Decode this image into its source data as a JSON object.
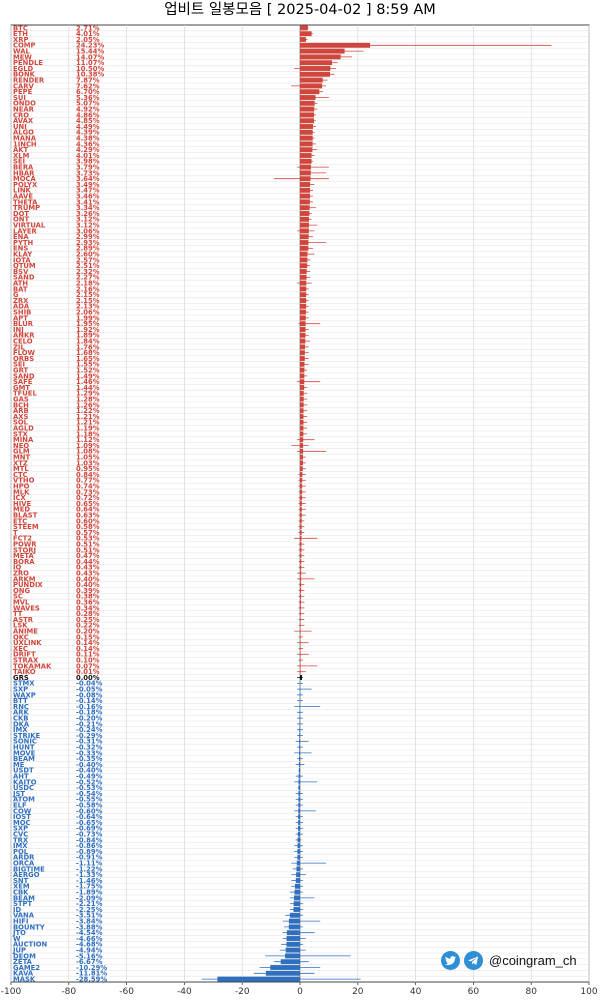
{
  "chart_data": {
    "type": "bar",
    "orientation": "horizontal",
    "title": "업비트 일봉모음 [ 2025-04-02 ] 8:59 AM",
    "xlim": [
      -100,
      100
    ],
    "xticks": [
      -100,
      -80,
      -60,
      -40,
      -20,
      0,
      20,
      40,
      60,
      80,
      100
    ],
    "grid": true,
    "colors": {
      "positive": "#d0463c",
      "negative": "#2f6fc0",
      "zero": "#111111"
    },
    "rows": [
      {
        "label": "BTC",
        "value": 2.71,
        "lo": 2.0,
        "hi": 3.0
      },
      {
        "label": "ETH",
        "value": 4.01,
        "lo": 3.0,
        "hi": 4.5
      },
      {
        "label": "XRP",
        "value": 2.05,
        "lo": 1.5,
        "hi": 2.6
      },
      {
        "label": "COMP",
        "value": 24.23,
        "lo": 20.0,
        "hi": 87.0
      },
      {
        "label": "WAL",
        "value": 15.44,
        "lo": 12.0,
        "hi": 22.0
      },
      {
        "label": "MEW",
        "value": 14.07,
        "lo": 11.0,
        "hi": 18.0
      },
      {
        "label": "PENDLE",
        "value": 11.07,
        "lo": 8.0,
        "hi": 13.0
      },
      {
        "label": "EGLD",
        "value": 10.5,
        "lo": -2.0,
        "hi": 12.5
      },
      {
        "label": "BONK",
        "value": 10.38,
        "lo": 8.0,
        "hi": 12.0
      },
      {
        "label": "RENDER",
        "value": 7.87,
        "lo": 5.5,
        "hi": 9.5
      },
      {
        "label": "CARV",
        "value": 7.62,
        "lo": -3.0,
        "hi": 9.0
      },
      {
        "label": "PEPE",
        "value": 6.7,
        "lo": 5.0,
        "hi": 8.0
      },
      {
        "label": "SUI",
        "value": 5.36,
        "lo": 4.0,
        "hi": 10.0
      },
      {
        "label": "ONDO",
        "value": 5.07,
        "lo": 4.0,
        "hi": 6.0
      },
      {
        "label": "NEAR",
        "value": 4.92,
        "lo": 3.5,
        "hi": 6.0
      },
      {
        "label": "CRO",
        "value": 4.86,
        "lo": 3.0,
        "hi": 5.5
      },
      {
        "label": "AVAX",
        "value": 4.85,
        "lo": 3.5,
        "hi": 5.5
      },
      {
        "label": "UNI",
        "value": 4.49,
        "lo": 3.0,
        "hi": 5.5
      },
      {
        "label": "ALGO",
        "value": 4.39,
        "lo": 3.0,
        "hi": 5.0
      },
      {
        "label": "MANA",
        "value": 4.38,
        "lo": 2.5,
        "hi": 5.0
      },
      {
        "label": "1INCH",
        "value": 4.36,
        "lo": 2.5,
        "hi": 5.5
      },
      {
        "label": "AKT",
        "value": 4.29,
        "lo": 3.0,
        "hi": 6.0
      },
      {
        "label": "XLM",
        "value": 4.01,
        "lo": 3.0,
        "hi": 5.0
      },
      {
        "label": "SEI",
        "value": 3.98,
        "lo": 2.5,
        "hi": 4.5
      },
      {
        "label": "BERA",
        "value": 3.79,
        "lo": -1.0,
        "hi": 10.0
      },
      {
        "label": "HBAR",
        "value": 3.73,
        "lo": 1.5,
        "hi": 9.0
      },
      {
        "label": "MOCA",
        "value": 3.64,
        "lo": -9.0,
        "hi": 10.0
      },
      {
        "label": "POLYX",
        "value": 3.49,
        "lo": 1.0,
        "hi": 5.0
      },
      {
        "label": "LINK",
        "value": 3.47,
        "lo": 2.5,
        "hi": 4.5
      },
      {
        "label": "AAVE",
        "value": 3.46,
        "lo": 2.0,
        "hi": 4.5
      },
      {
        "label": "THETA",
        "value": 3.41,
        "lo": 2.0,
        "hi": 4.5
      },
      {
        "label": "TRUMP",
        "value": 3.34,
        "lo": 2.0,
        "hi": 5.5
      },
      {
        "label": "DOT",
        "value": 3.26,
        "lo": 2.0,
        "hi": 4.0
      },
      {
        "label": "ONT",
        "value": 3.12,
        "lo": 1.5,
        "hi": 4.0
      },
      {
        "label": "VIRTUAL",
        "value": 3.12,
        "lo": 0.5,
        "hi": 6.0
      },
      {
        "label": "LAYER",
        "value": 3.06,
        "lo": -1.0,
        "hi": 5.0
      },
      {
        "label": "ENA",
        "value": 2.99,
        "lo": 1.5,
        "hi": 4.5
      },
      {
        "label": "PYTH",
        "value": 2.93,
        "lo": 1.0,
        "hi": 9.0
      },
      {
        "label": "ENS",
        "value": 2.89,
        "lo": 1.5,
        "hi": 4.5
      },
      {
        "label": "KLAY",
        "value": 2.6,
        "lo": 1.0,
        "hi": 5.0
      },
      {
        "label": "IOTA",
        "value": 2.57,
        "lo": 1.5,
        "hi": 3.5
      },
      {
        "label": "QTUM",
        "value": 2.51,
        "lo": 1.5,
        "hi": 3.5
      },
      {
        "label": "BSV",
        "value": 2.32,
        "lo": 1.0,
        "hi": 3.5
      },
      {
        "label": "SAND",
        "value": 2.27,
        "lo": 1.0,
        "hi": 3.5
      },
      {
        "label": "ATH",
        "value": 2.18,
        "lo": -1.0,
        "hi": 4.0
      },
      {
        "label": "BAT",
        "value": 2.16,
        "lo": 1.0,
        "hi": 3.0
      },
      {
        "label": "G",
        "value": 2.15,
        "lo": 1.0,
        "hi": 3.0
      },
      {
        "label": "ZRX",
        "value": 2.15,
        "lo": 1.0,
        "hi": 3.0
      },
      {
        "label": "ADA",
        "value": 2.13,
        "lo": 1.0,
        "hi": 3.0
      },
      {
        "label": "SHIB",
        "value": 2.06,
        "lo": 1.0,
        "hi": 3.0
      },
      {
        "label": "APT",
        "value": 1.99,
        "lo": 0.5,
        "hi": 3.0
      },
      {
        "label": "BLUR",
        "value": 1.95,
        "lo": -0.5,
        "hi": 7.0
      },
      {
        "label": "INJ",
        "value": 1.92,
        "lo": 0.5,
        "hi": 3.0
      },
      {
        "label": "ANKR",
        "value": 1.89,
        "lo": 0.5,
        "hi": 3.0
      },
      {
        "label": "CELO",
        "value": 1.84,
        "lo": 0.5,
        "hi": 3.5
      },
      {
        "label": "ZIL",
        "value": 1.76,
        "lo": 0.5,
        "hi": 3.0
      },
      {
        "label": "FLOW",
        "value": 1.68,
        "lo": 0.5,
        "hi": 3.0
      },
      {
        "label": "ORBS",
        "value": 1.65,
        "lo": 0.5,
        "hi": 3.0
      },
      {
        "label": "SEI",
        "value": 1.55,
        "lo": 0.5,
        "hi": 3.0
      },
      {
        "label": "GRT",
        "value": 1.52,
        "lo": 0.5,
        "hi": 2.5
      },
      {
        "label": "SAND",
        "value": 1.49,
        "lo": 0.5,
        "hi": 2.5
      },
      {
        "label": "SAFE",
        "value": 1.46,
        "lo": -1.0,
        "hi": 7.0
      },
      {
        "label": "GMT",
        "value": 1.44,
        "lo": 0.5,
        "hi": 2.5
      },
      {
        "label": "TFUEL",
        "value": 1.29,
        "lo": 0.5,
        "hi": 2.5
      },
      {
        "label": "GAS",
        "value": 1.28,
        "lo": 0.5,
        "hi": 2.5
      },
      {
        "label": "BCH",
        "value": 1.26,
        "lo": 0.5,
        "hi": 2.5
      },
      {
        "label": "ARB",
        "value": 1.22,
        "lo": 0.0,
        "hi": 2.5
      },
      {
        "label": "AXS",
        "value": 1.21,
        "lo": 0.0,
        "hi": 2.5
      },
      {
        "label": "SOL",
        "value": 1.21,
        "lo": 0.0,
        "hi": 2.5
      },
      {
        "label": "AGLD",
        "value": 1.19,
        "lo": 0.0,
        "hi": 2.5
      },
      {
        "label": "STX",
        "value": 1.18,
        "lo": 0.0,
        "hi": 2.5
      },
      {
        "label": "MINA",
        "value": 1.12,
        "lo": -1.0,
        "hi": 5.0
      },
      {
        "label": "NEO",
        "value": 1.09,
        "lo": -3.0,
        "hi": 3.0
      },
      {
        "label": "GLM",
        "value": 1.08,
        "lo": -1.0,
        "hi": 9.0
      },
      {
        "label": "MNT",
        "value": 1.05,
        "lo": 0.0,
        "hi": 2.0
      },
      {
        "label": "XTZ",
        "value": 1.03,
        "lo": 0.0,
        "hi": 2.0
      },
      {
        "label": "MTL",
        "value": 0.95,
        "lo": 0.0,
        "hi": 2.0
      },
      {
        "label": "CTC",
        "value": 0.84,
        "lo": -0.5,
        "hi": 2.0
      },
      {
        "label": "VTHO",
        "value": 0.77,
        "lo": -0.5,
        "hi": 2.0
      },
      {
        "label": "HPO",
        "value": 0.74,
        "lo": -0.5,
        "hi": 2.0
      },
      {
        "label": "MLK",
        "value": 0.73,
        "lo": -0.5,
        "hi": 2.0
      },
      {
        "label": "ICX",
        "value": 0.72,
        "lo": -0.5,
        "hi": 2.0
      },
      {
        "label": "HIVE",
        "value": 0.65,
        "lo": -0.5,
        "hi": 2.0
      },
      {
        "label": "MED",
        "value": 0.64,
        "lo": -0.5,
        "hi": 2.0
      },
      {
        "label": "BLAST",
        "value": 0.63,
        "lo": -0.5,
        "hi": 2.0
      },
      {
        "label": "ETC",
        "value": 0.6,
        "lo": -0.5,
        "hi": 1.5
      },
      {
        "label": "STEEM",
        "value": 0.58,
        "lo": -0.5,
        "hi": 1.5
      },
      {
        "label": "T",
        "value": 0.57,
        "lo": -0.5,
        "hi": 1.5
      },
      {
        "label": "FCT2",
        "value": 0.53,
        "lo": -2.0,
        "hi": 6.0
      },
      {
        "label": "POWR",
        "value": 0.51,
        "lo": -0.5,
        "hi": 1.5
      },
      {
        "label": "STORJ",
        "value": 0.51,
        "lo": -0.5,
        "hi": 1.5
      },
      {
        "label": "META",
        "value": 0.47,
        "lo": -0.5,
        "hi": 1.5
      },
      {
        "label": "BORA",
        "value": 0.44,
        "lo": -0.5,
        "hi": 1.5
      },
      {
        "label": "IQ",
        "value": 0.43,
        "lo": -0.5,
        "hi": 1.5
      },
      {
        "label": "ZRO",
        "value": 0.43,
        "lo": -1.0,
        "hi": 2.0
      },
      {
        "label": "ARKM",
        "value": 0.4,
        "lo": -1.0,
        "hi": 5.0
      },
      {
        "label": "PUNDIX",
        "value": 0.4,
        "lo": -0.5,
        "hi": 1.5
      },
      {
        "label": "ONG",
        "value": 0.39,
        "lo": -0.5,
        "hi": 1.5
      },
      {
        "label": "SC",
        "value": 0.38,
        "lo": -0.5,
        "hi": 1.5
      },
      {
        "label": "MVL",
        "value": 0.36,
        "lo": -0.5,
        "hi": 1.5
      },
      {
        "label": "WAVES",
        "value": 0.34,
        "lo": -0.5,
        "hi": 1.5
      },
      {
        "label": "TT",
        "value": 0.28,
        "lo": -0.5,
        "hi": 1.5
      },
      {
        "label": "ASTR",
        "value": 0.25,
        "lo": -0.5,
        "hi": 1.5
      },
      {
        "label": "LSK",
        "value": 0.22,
        "lo": -0.5,
        "hi": 1.5
      },
      {
        "label": "ANIME",
        "value": 0.2,
        "lo": -2.0,
        "hi": 4.0
      },
      {
        "label": "QKC",
        "value": 0.15,
        "lo": -0.5,
        "hi": 1.0
      },
      {
        "label": "UXLINK",
        "value": 0.14,
        "lo": -1.0,
        "hi": 3.0
      },
      {
        "label": "XEC",
        "value": 0.14,
        "lo": -0.5,
        "hi": 1.0
      },
      {
        "label": "DRIFT",
        "value": 0.11,
        "lo": -1.0,
        "hi": 3.0
      },
      {
        "label": "STRAX",
        "value": 0.1,
        "lo": -0.5,
        "hi": 1.0
      },
      {
        "label": "TOKAMAK",
        "value": 0.07,
        "lo": -1.0,
        "hi": 6.0
      },
      {
        "label": "TAIKO",
        "value": 0.01,
        "lo": -1.0,
        "hi": 2.0
      },
      {
        "label": "GRS",
        "value": 0.0,
        "lo": -1.0,
        "hi": 1.0
      },
      {
        "label": "STMX",
        "value": -0.04,
        "lo": -1.0,
        "hi": 1.0
      },
      {
        "label": "SXP",
        "value": -0.05,
        "lo": -1.0,
        "hi": 4.0
      },
      {
        "label": "WAXP",
        "value": -0.08,
        "lo": -1.0,
        "hi": 1.0
      },
      {
        "label": "BTT",
        "value": -0.14,
        "lo": -1.0,
        "hi": 1.0
      },
      {
        "label": "RNC",
        "value": -0.16,
        "lo": -2.0,
        "hi": 7.0
      },
      {
        "label": "ARK",
        "value": -0.18,
        "lo": -1.0,
        "hi": 1.0
      },
      {
        "label": "CKB",
        "value": -0.2,
        "lo": -1.0,
        "hi": 1.0
      },
      {
        "label": "DKA",
        "value": -0.21,
        "lo": -1.0,
        "hi": 1.0
      },
      {
        "label": "IMX",
        "value": -0.24,
        "lo": -1.0,
        "hi": 1.0
      },
      {
        "label": "STRIKE",
        "value": -0.29,
        "lo": -1.0,
        "hi": 1.0
      },
      {
        "label": "SONIC",
        "value": -0.31,
        "lo": -1.5,
        "hi": 3.0
      },
      {
        "label": "HUNT",
        "value": -0.32,
        "lo": -1.0,
        "hi": 1.0
      },
      {
        "label": "MOVE",
        "value": -0.33,
        "lo": -2.0,
        "hi": 4.0
      },
      {
        "label": "BEAM",
        "value": -0.35,
        "lo": -1.0,
        "hi": 1.0
      },
      {
        "label": "ME",
        "value": -0.4,
        "lo": -1.5,
        "hi": 1.5
      },
      {
        "label": "USDT",
        "value": -0.4,
        "lo": -0.5,
        "hi": 0.0
      },
      {
        "label": "AHT",
        "value": -0.49,
        "lo": -1.5,
        "hi": 1.0
      },
      {
        "label": "KAITO",
        "value": -0.52,
        "lo": -2.0,
        "hi": 6.0
      },
      {
        "label": "USDC",
        "value": -0.53,
        "lo": -0.8,
        "hi": 0.0
      },
      {
        "label": "JST",
        "value": -0.54,
        "lo": -1.5,
        "hi": 1.0
      },
      {
        "label": "ATOM",
        "value": -0.55,
        "lo": -1.5,
        "hi": 1.0
      },
      {
        "label": "ELF",
        "value": -0.58,
        "lo": -1.5,
        "hi": 1.0
      },
      {
        "label": "COW",
        "value": -0.6,
        "lo": -2.0,
        "hi": 5.5
      },
      {
        "label": "IOST",
        "value": -0.64,
        "lo": -1.5,
        "hi": 1.0
      },
      {
        "label": "MOC",
        "value": -0.65,
        "lo": -1.5,
        "hi": 1.0
      },
      {
        "label": "SXP",
        "value": -0.69,
        "lo": -1.5,
        "hi": 1.0
      },
      {
        "label": "CVC",
        "value": -0.73,
        "lo": -1.5,
        "hi": 1.0
      },
      {
        "label": "TRX",
        "value": -0.84,
        "lo": -1.5,
        "hi": 0.5
      },
      {
        "label": "IMX",
        "value": -0.86,
        "lo": -2.0,
        "hi": 1.0
      },
      {
        "label": "POL",
        "value": -0.89,
        "lo": -2.0,
        "hi": 1.0
      },
      {
        "label": "ARDR",
        "value": -0.91,
        "lo": -2.0,
        "hi": 1.0
      },
      {
        "label": "ORCA",
        "value": -1.11,
        "lo": -3.0,
        "hi": 9.0
      },
      {
        "label": "BIGTIME",
        "value": -1.22,
        "lo": -2.5,
        "hi": 1.0
      },
      {
        "label": "AERGO",
        "value": -1.33,
        "lo": -3.0,
        "hi": 2.0
      },
      {
        "label": "SNT",
        "value": -1.46,
        "lo": -3.0,
        "hi": 1.0
      },
      {
        "label": "XEM",
        "value": -1.75,
        "lo": -3.0,
        "hi": 1.0
      },
      {
        "label": "CBK",
        "value": -1.89,
        "lo": -3.5,
        "hi": 1.0
      },
      {
        "label": "BEAM",
        "value": -2.09,
        "lo": -3.5,
        "hi": 5.0
      },
      {
        "label": "STPT",
        "value": -2.21,
        "lo": -3.5,
        "hi": 1.0
      },
      {
        "label": "ID",
        "value": -2.25,
        "lo": -3.5,
        "hi": 1.0
      },
      {
        "label": "VANA",
        "value": -3.51,
        "lo": -5.0,
        "hi": 1.0
      },
      {
        "label": "HIFI",
        "value": -3.84,
        "lo": -6.0,
        "hi": 7.0
      },
      {
        "label": "BOUNTY",
        "value": -3.88,
        "lo": -5.5,
        "hi": 1.0
      },
      {
        "label": "JTO",
        "value": -4.54,
        "lo": -6.0,
        "hi": 5.0
      },
      {
        "label": "W",
        "value": -4.66,
        "lo": -6.0,
        "hi": 2.0
      },
      {
        "label": "AUCTION",
        "value": -4.68,
        "lo": -6.5,
        "hi": 1.0
      },
      {
        "label": "JUP",
        "value": -4.94,
        "lo": -7.0,
        "hi": 2.0
      },
      {
        "label": "DEOM",
        "value": -5.16,
        "lo": -12.0,
        "hi": 17.5
      },
      {
        "label": "ZETA",
        "value": -6.67,
        "lo": -9.0,
        "hi": 3.0
      },
      {
        "label": "GAME2",
        "value": -10.29,
        "lo": -14.0,
        "hi": 7.0
      },
      {
        "label": "KAVA",
        "value": -11.81,
        "lo": -16.0,
        "hi": 5.0
      },
      {
        "label": "MASK",
        "value": -28.59,
        "lo": -34.0,
        "hi": 21.0
      }
    ]
  },
  "brand": {
    "handle": "@coingram_ch",
    "icons": [
      "twitter-icon",
      "telegram-icon"
    ]
  }
}
